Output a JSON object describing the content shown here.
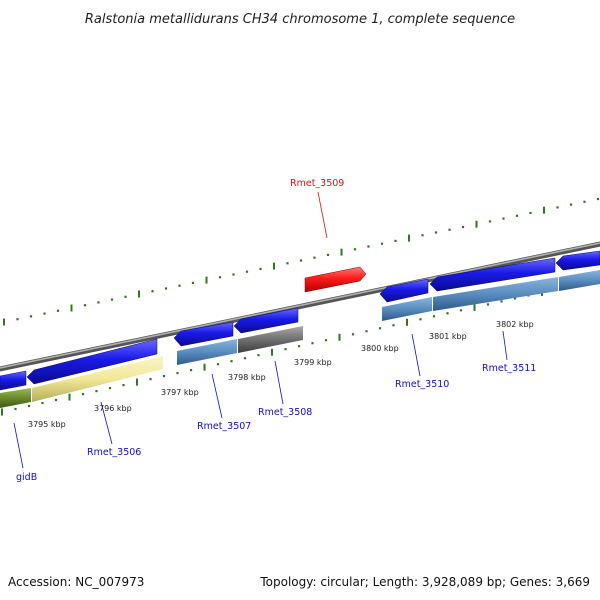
{
  "title": "Ralstonia metallidurans CH34 chromosome 1, complete sequence",
  "footer": {
    "accession": "Accession: NC_007973",
    "topology": "Topology: circular; Length: 3,928,089 bp; Genes: 3,669"
  },
  "ruler": [
    "3795 kbp",
    "3796 kbp",
    "3797 kbp",
    "3798 kbp",
    "3799 kbp",
    "3800 kbp",
    "3801 kbp",
    "3802 kbp"
  ],
  "genes": [
    {
      "name": "gidB",
      "color": "#1010c8"
    },
    {
      "name": "Rmet_3506",
      "color": "#1010c8"
    },
    {
      "name": "Rmet_3507",
      "color": "#1010c8"
    },
    {
      "name": "Rmet_3508",
      "color": "#1010c8"
    },
    {
      "name": "Rmet_3509",
      "color": "#e01010"
    },
    {
      "name": "Rmet_3510",
      "color": "#1010c8"
    },
    {
      "name": "Rmet_3511",
      "color": "#1010c8"
    }
  ],
  "colors": {
    "cds": "#1a1ae8",
    "rna": "#ff1a1a",
    "backbone": "#8c8c8c",
    "feature_steelblue": "#5a8cc0",
    "feature_khaki": "#f2e898",
    "feature_olive": "#6a8a2a",
    "feature_gray": "#707070",
    "tick_green": "#2a7a1a"
  }
}
